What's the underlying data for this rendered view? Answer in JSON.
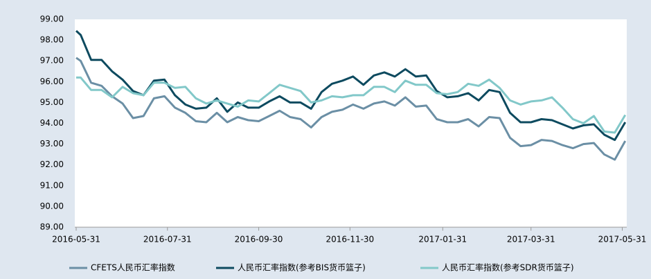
{
  "chart_data": {
    "type": "line",
    "x": [
      "2016-05-31",
      "2016-06-03",
      "2016-06-10",
      "2016-06-17",
      "2016-06-24",
      "2016-07-01",
      "2016-07-08",
      "2016-07-15",
      "2016-07-22",
      "2016-07-29",
      "2016-08-05",
      "2016-08-12",
      "2016-08-19",
      "2016-08-26",
      "2016-09-02",
      "2016-09-09",
      "2016-09-16",
      "2016-09-23",
      "2016-09-30",
      "2016-10-07",
      "2016-10-14",
      "2016-10-21",
      "2016-10-28",
      "2016-11-04",
      "2016-11-11",
      "2016-11-18",
      "2016-11-25",
      "2016-12-02",
      "2016-12-09",
      "2016-12-16",
      "2016-12-23",
      "2016-12-30",
      "2017-01-06",
      "2017-01-13",
      "2017-01-20",
      "2017-01-27",
      "2017-02-03",
      "2017-02-10",
      "2017-02-17",
      "2017-02-24",
      "2017-03-03",
      "2017-03-10",
      "2017-03-17",
      "2017-03-24",
      "2017-03-31",
      "2017-04-07",
      "2017-04-14",
      "2017-04-21",
      "2017-04-28",
      "2017-05-05",
      "2017-05-12",
      "2017-05-19",
      "2017-05-26",
      "2017-06-02"
    ],
    "xlim": [
      "2016-05-31",
      "2017-06-03"
    ],
    "xticks": [
      "2016-05-31",
      "2016-07-31",
      "2016-09-30",
      "2016-11-30",
      "2017-01-31",
      "2017-03-31",
      "2017-05-31"
    ],
    "ylim": [
      89,
      99
    ],
    "yticks": [
      {
        "value": 89,
        "label": "89.00"
      },
      {
        "value": 90,
        "label": "90.00"
      },
      {
        "value": 91,
        "label": "91.00"
      },
      {
        "value": 92,
        "label": "92.00"
      },
      {
        "value": 93,
        "label": "93.00"
      },
      {
        "value": 94,
        "label": "94.00"
      },
      {
        "value": 95,
        "label": "95.00"
      },
      {
        "value": 96,
        "label": "96.00"
      },
      {
        "value": 97,
        "label": "97.00"
      },
      {
        "value": 98,
        "label": "98.00"
      },
      {
        "value": 99,
        "label": "99.00"
      }
    ],
    "grid": false,
    "legend": "bottom",
    "series": [
      {
        "name": "CFETS人民币汇率指数",
        "color": "#6b8fa5",
        "values": [
          97.15,
          97.0,
          95.95,
          95.8,
          95.3,
          94.95,
          94.25,
          94.35,
          95.2,
          95.3,
          94.75,
          94.5,
          94.1,
          94.05,
          94.5,
          94.05,
          94.3,
          94.15,
          94.1,
          94.35,
          94.6,
          94.3,
          94.2,
          93.8,
          94.3,
          94.55,
          94.65,
          94.9,
          94.7,
          94.95,
          95.05,
          94.85,
          95.25,
          94.8,
          94.85,
          94.2,
          94.05,
          94.05,
          94.2,
          93.85,
          94.3,
          94.25,
          93.3,
          92.9,
          92.95,
          93.2,
          93.15,
          92.95,
          92.8,
          93.0,
          93.05,
          92.5,
          92.25,
          93.15
        ]
      },
      {
        "name": "人民币汇率指数(参考BIS货币篮子)",
        "color": "#0d4a5f",
        "values": [
          98.45,
          98.25,
          97.05,
          97.05,
          96.5,
          96.1,
          95.55,
          95.35,
          96.05,
          96.1,
          95.35,
          94.9,
          94.7,
          94.75,
          95.2,
          94.55,
          95.0,
          94.75,
          94.75,
          95.05,
          95.3,
          95.0,
          95.0,
          94.7,
          95.5,
          95.9,
          96.05,
          96.25,
          95.85,
          96.3,
          96.45,
          96.25,
          96.6,
          96.25,
          96.3,
          95.55,
          95.25,
          95.3,
          95.45,
          95.1,
          95.6,
          95.5,
          94.5,
          94.05,
          94.05,
          94.2,
          94.15,
          93.95,
          93.75,
          93.9,
          93.95,
          93.45,
          93.2,
          94.05
        ]
      },
      {
        "name": "人民币汇率指数(参考SDR货币篮子)",
        "color": "#82c8c9",
        "values": [
          96.2,
          96.2,
          95.6,
          95.6,
          95.25,
          95.75,
          95.45,
          95.35,
          95.95,
          95.95,
          95.7,
          95.75,
          95.2,
          94.95,
          95.1,
          94.95,
          94.8,
          95.1,
          95.05,
          95.45,
          95.85,
          95.7,
          95.55,
          95.0,
          95.1,
          95.3,
          95.25,
          95.35,
          95.35,
          95.75,
          95.75,
          95.5,
          96.05,
          95.85,
          95.85,
          95.45,
          95.4,
          95.5,
          95.9,
          95.8,
          96.1,
          95.7,
          95.1,
          94.9,
          95.05,
          95.1,
          95.25,
          94.75,
          94.2,
          94.0,
          94.35,
          93.6,
          93.55,
          94.4
        ]
      }
    ]
  }
}
